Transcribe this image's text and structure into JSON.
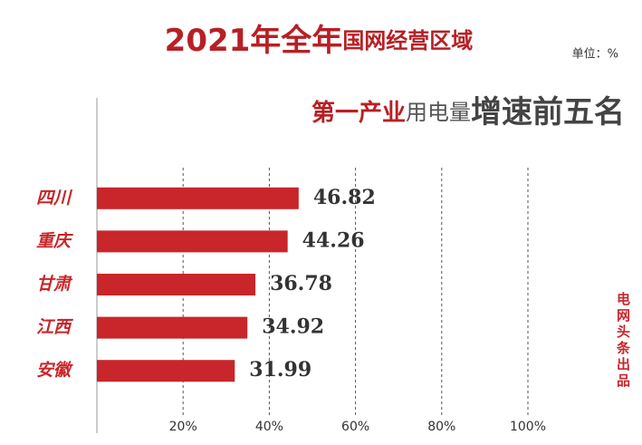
{
  "chart_data": {
    "type": "bar",
    "orientation": "horizontal",
    "title": [
      "2021年全年",
      "国网经营区域"
    ],
    "subtitle": [
      "第一产业",
      "用电量",
      "增速前五名"
    ],
    "unit": "单位：%",
    "source": "电网头条出品",
    "categories": [
      "四川",
      "重庆",
      "甘肃",
      "江西",
      "安徽"
    ],
    "values": [
      46.82,
      44.26,
      36.78,
      34.92,
      31.99
    ],
    "color": "#c8262a",
    "xlim": [
      0,
      100
    ],
    "xticks": [
      {
        "value": 20,
        "label": "20%"
      },
      {
        "value": 40,
        "label": "40%"
      },
      {
        "value": 60,
        "label": "60%"
      },
      {
        "value": 80,
        "label": "80%"
      },
      {
        "value": 100,
        "label": "100%"
      }
    ],
    "grid": true
  }
}
